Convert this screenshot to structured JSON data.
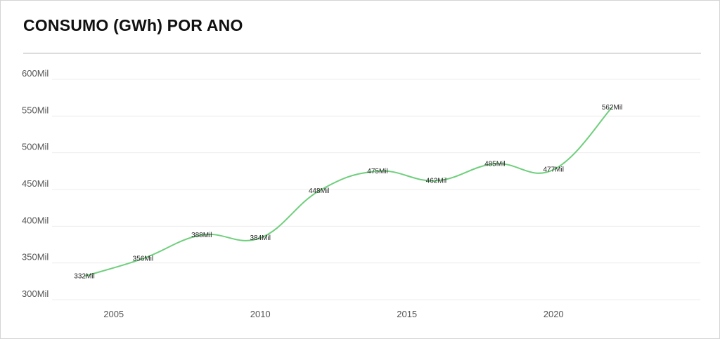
{
  "title": "CONSUMO (GWh) POR ANO",
  "chart_data": {
    "type": "line",
    "title": "CONSUMO (GWh) POR ANO",
    "xlabel": "",
    "ylabel": "",
    "x": [
      2004,
      2006,
      2008,
      2010,
      2012,
      2014,
      2016,
      2018,
      2020,
      2022
    ],
    "values": [
      332,
      356,
      388,
      384,
      448,
      475,
      462,
      485,
      477,
      562
    ],
    "data_labels": [
      "332Mil",
      "356Mil",
      "388Mil",
      "384Mil",
      "448Mil",
      "475Mil",
      "462Mil",
      "485Mil",
      "477Mil",
      "562Mil"
    ],
    "ylim": [
      300,
      600
    ],
    "xlim": [
      2003,
      2025
    ],
    "y_ticks": [
      300,
      350,
      400,
      450,
      500,
      550,
      600
    ],
    "y_tick_labels": [
      "300Mil",
      "350Mil",
      "400Mil",
      "450Mil",
      "500Mil",
      "550Mil",
      "600Mil"
    ],
    "x_ticks": [
      2005,
      2010,
      2015,
      2020
    ],
    "x_tick_labels": [
      "2005",
      "2010",
      "2015",
      "2020"
    ],
    "grid": true,
    "line_color": "#6fcf7c",
    "smooth": true
  }
}
